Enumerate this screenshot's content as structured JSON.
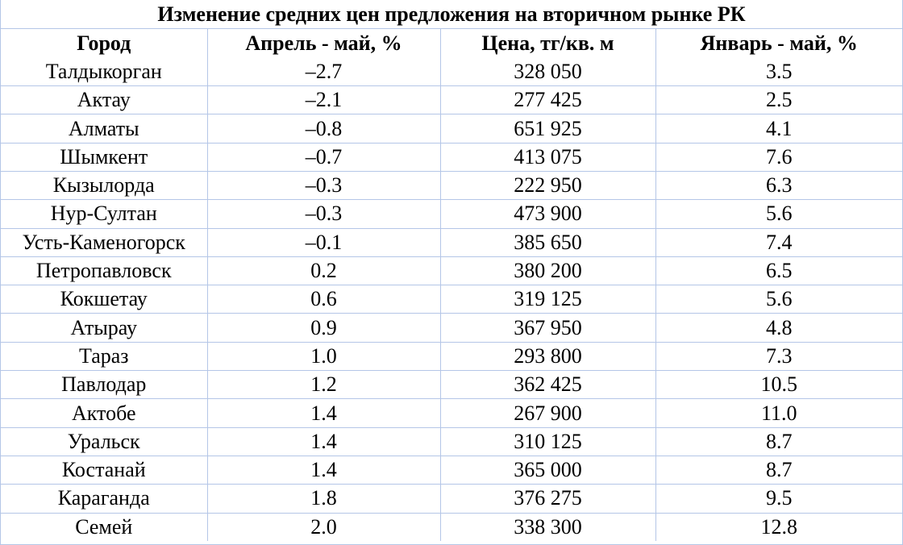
{
  "chart_data": {
    "type": "table",
    "title": "Изменение средних цен предложения на вторичном рынке РК",
    "columns": [
      "Город",
      "Апрель - май, %",
      "Цена, тг/кв. м",
      "Январь - май, %"
    ],
    "rows": [
      [
        "Талдыкорган",
        "–2.7",
        "328 050",
        "3.5"
      ],
      [
        "Актау",
        "–2.1",
        "277 425",
        "2.5"
      ],
      [
        "Алматы",
        "–0.8",
        "651 925",
        "4.1"
      ],
      [
        "Шымкент",
        "–0.7",
        "413 075",
        "7.6"
      ],
      [
        "Кызылорда",
        "–0.3",
        "222 950",
        "6.3"
      ],
      [
        "Нур-Султан",
        "–0.3",
        "473 900",
        "5.6"
      ],
      [
        "Усть-Каменогорск",
        "–0.1",
        "385 650",
        "7.4"
      ],
      [
        "Петропавловск",
        "0.2",
        "380 200",
        "6.5"
      ],
      [
        "Кокшетау",
        "0.6",
        "319 125",
        "5.6"
      ],
      [
        "Атырау",
        "0.9",
        "367 950",
        "4.8"
      ],
      [
        "Тараз",
        "1.0",
        "293 800",
        "7.3"
      ],
      [
        "Павлодар",
        "1.2",
        "362 425",
        "10.5"
      ],
      [
        "Актобе",
        "1.4",
        "267 900",
        "11.0"
      ],
      [
        "Уральск",
        "1.4",
        "310 125",
        "8.7"
      ],
      [
        "Костанай",
        "1.4",
        "365 000",
        "8.7"
      ],
      [
        "Караганда",
        "1.8",
        "376 275",
        "9.5"
      ],
      [
        "Семей",
        "2.0",
        "338 300",
        "12.8"
      ]
    ]
  },
  "colors": {
    "grid_line": "#b4c6e7",
    "text": "#000000",
    "background": "#ffffff"
  }
}
